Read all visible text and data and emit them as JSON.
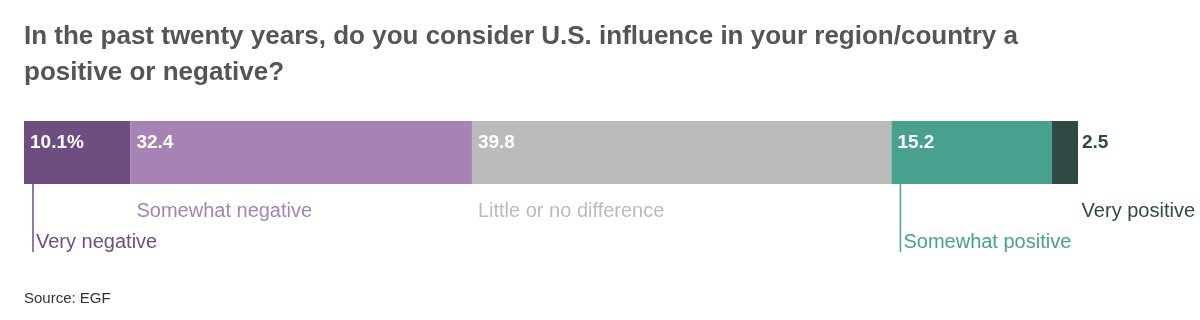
{
  "chart_data": {
    "type": "bar",
    "orientation": "horizontal",
    "stacked": true,
    "title": "In the past twenty years, do you consider U.S. influence in your region/country a positive or negative?",
    "categories": [
      null
    ],
    "series": [
      {
        "name": "Very negative",
        "color": "#6e4e80",
        "values": [
          10.1
        ],
        "value_labels": [
          "10.1%"
        ]
      },
      {
        "name": "Somewhat negative",
        "color": "#a782b5",
        "values": [
          32.4
        ],
        "value_labels": [
          "32.4"
        ]
      },
      {
        "name": "Little or no difference",
        "color": "#bbbbbb",
        "values": [
          39.8
        ],
        "value_labels": [
          "39.8"
        ]
      },
      {
        "name": "Somewhat positive",
        "color": "#48a08f",
        "values": [
          15.2
        ],
        "value_labels": [
          "15.2"
        ]
      },
      {
        "name": "Very positive",
        "color": "#2f4a44",
        "values": [
          2.5
        ],
        "value_labels": [
          "2.5"
        ]
      }
    ],
    "annotations": [
      "Source: EGF"
    ]
  }
}
